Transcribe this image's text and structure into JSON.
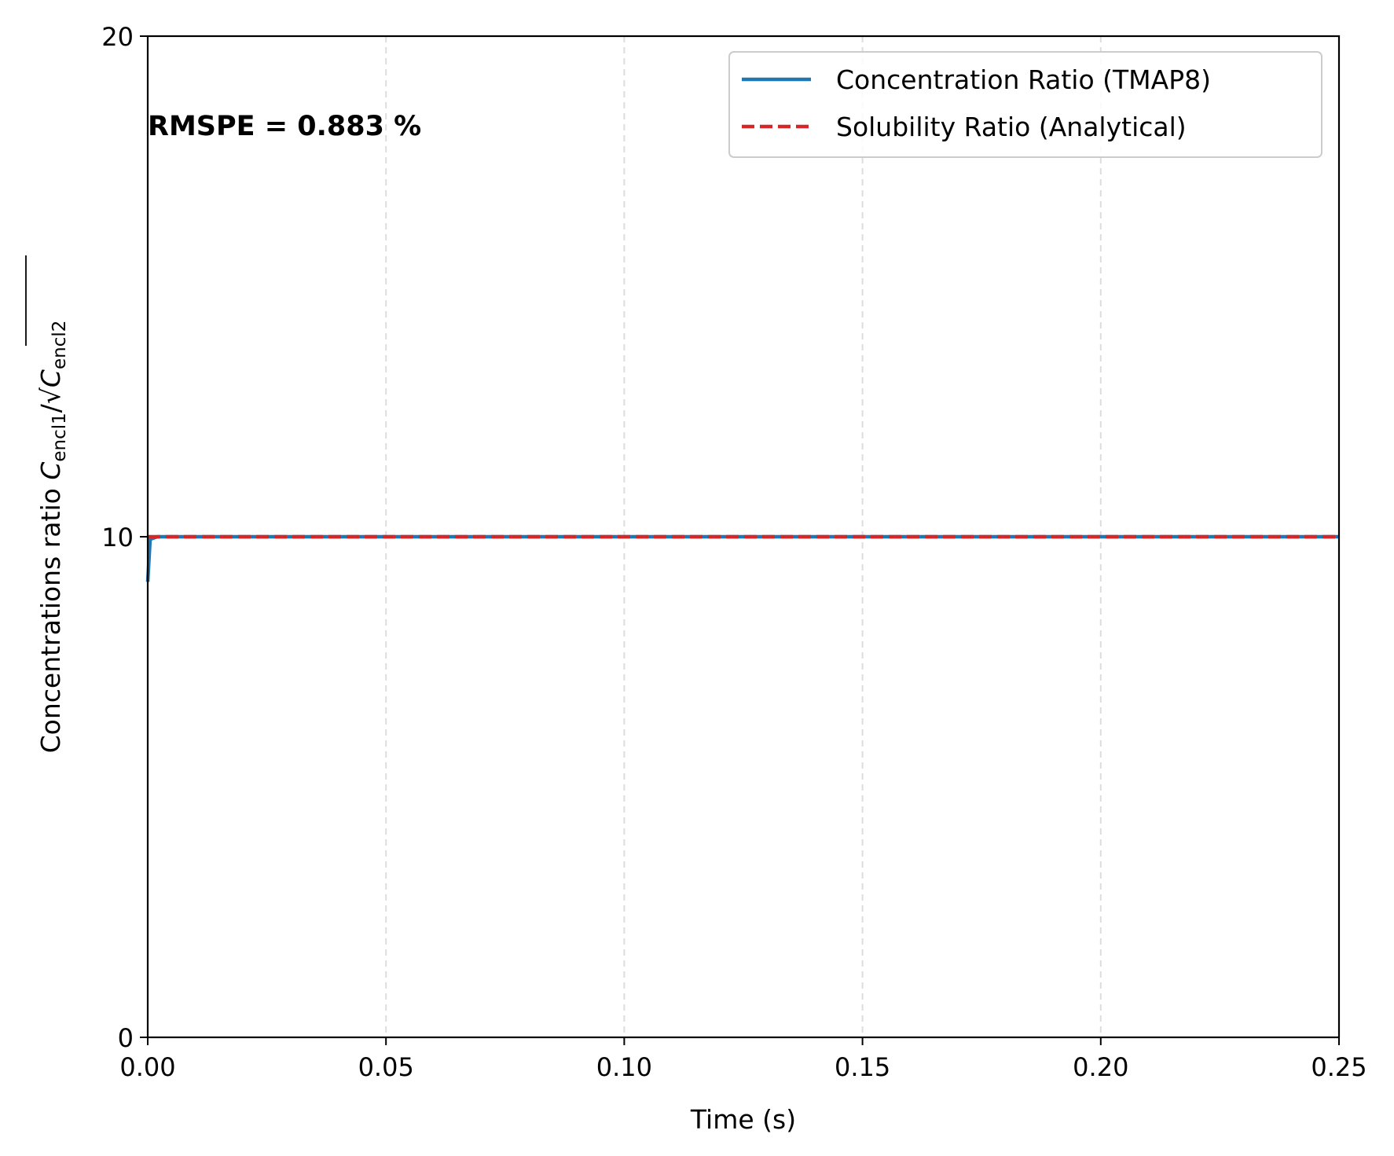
{
  "chart_data": {
    "type": "line",
    "xlabel": "Time (s)",
    "ylabel": {
      "prefix": "Concentrations ratio ",
      "numerator_symbol": "C",
      "numerator_sub": "encl1",
      "divider": "/√",
      "denominator_symbol": "C",
      "denominator_sub": "encl2"
    },
    "xlim": [
      0,
      0.25
    ],
    "ylim": [
      0,
      20
    ],
    "xticks": [
      0,
      0.05,
      0.1,
      0.15,
      0.2,
      0.25
    ],
    "xtick_labels": [
      "0.00",
      "0.05",
      "0.10",
      "0.15",
      "0.20",
      "0.25"
    ],
    "yticks": [
      0,
      10,
      20
    ],
    "ytick_labels": [
      "0",
      "10",
      "20"
    ],
    "grid": "x-dashed",
    "legend_position": "top-right",
    "series": [
      {
        "name": "Concentration Ratio (TMAP8)",
        "color": "#1f77b4",
        "style": "solid",
        "x": [
          0,
          0.0005,
          0.002,
          0.01,
          0.05,
          0.1,
          0.15,
          0.2,
          0.25
        ],
        "y": [
          9.1,
          9.95,
          10.0,
          10.0,
          10.0,
          10.0,
          10.0,
          10.0,
          10.0
        ]
      },
      {
        "name": "Solubility Ratio (Analytical)",
        "color": "#d62728",
        "style": "dashed",
        "x": [
          0,
          0.25
        ],
        "y": [
          10.0,
          10.0
        ]
      }
    ],
    "annotation": "RMSPE = 0.883 %"
  }
}
